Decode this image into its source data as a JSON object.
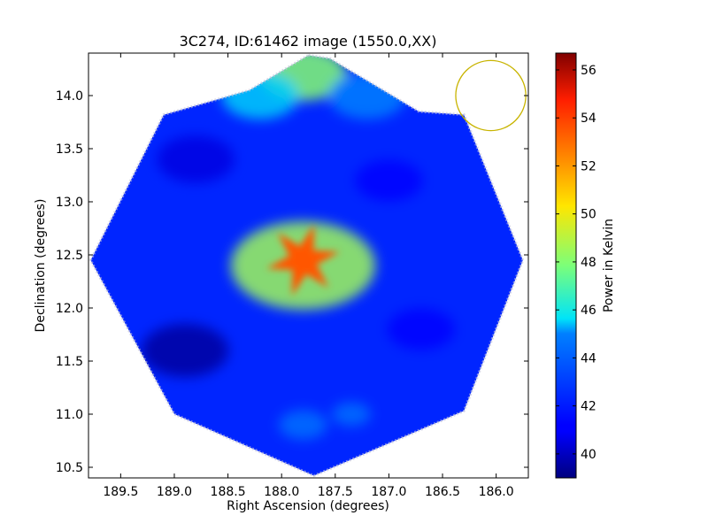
{
  "chart_data": {
    "type": "heatmap",
    "title": "3C274, ID:61462 image (1550.0,XX)",
    "xlabel": "Right Ascension (degrees)",
    "ylabel": "Declination (degrees)",
    "xlim": [
      189.8,
      185.7
    ],
    "ylim": [
      10.4,
      14.4
    ],
    "x_ticks": [
      189.5,
      189.0,
      188.5,
      188.0,
      187.5,
      187.0,
      186.5,
      186.0
    ],
    "x_tick_labels": [
      "189.5",
      "189.0",
      "188.5",
      "188.0",
      "187.5",
      "187.0",
      "186.5",
      "186.0"
    ],
    "y_ticks": [
      10.5,
      11.0,
      11.5,
      12.0,
      12.5,
      13.0,
      13.5,
      14.0
    ],
    "y_tick_labels": [
      "10.5",
      "11.0",
      "11.5",
      "12.0",
      "12.5",
      "13.0",
      "13.5",
      "14.0"
    ],
    "colorbar": {
      "label": "Power in Kelvin",
      "range": [
        39.0,
        56.7
      ],
      "ticks": [
        40,
        42,
        44,
        46,
        48,
        50,
        52,
        54,
        56
      ],
      "tick_labels": [
        "40",
        "42",
        "44",
        "46",
        "48",
        "50",
        "52",
        "54",
        "56"
      ],
      "colormap": "jet"
    },
    "footprint_vertices": [
      [
        187.75,
        14.38
      ],
      [
        187.55,
        14.35
      ],
      [
        186.72,
        13.85
      ],
      [
        186.3,
        13.82
      ],
      [
        185.75,
        12.45
      ],
      [
        186.3,
        11.03
      ],
      [
        187.7,
        10.42
      ],
      [
        189.0,
        11.0
      ],
      [
        189.78,
        12.45
      ],
      [
        189.1,
        13.82
      ],
      [
        188.3,
        14.05
      ]
    ],
    "features": [
      {
        "ra": 187.75,
        "dec": 12.42,
        "value": 56.5,
        "extent_deg": 0.12
      },
      {
        "ra": 187.8,
        "dec": 12.45,
        "value": 53.5,
        "extent_deg": 0.35
      },
      {
        "ra": 187.8,
        "dec": 12.4,
        "value": 48.5,
        "extent_deg": 0.75
      },
      {
        "ra": 187.8,
        "dec": 14.2,
        "value": 48.0,
        "extent_deg": 0.45
      },
      {
        "ra": 188.2,
        "dec": 14.0,
        "value": 45.5,
        "extent_deg": 0.4
      },
      {
        "ra": 187.2,
        "dec": 14.0,
        "value": 45.0,
        "extent_deg": 0.4
      },
      {
        "ra": 187.8,
        "dec": 10.9,
        "value": 44.5,
        "extent_deg": 0.25
      },
      {
        "ra": 187.35,
        "dec": 11.0,
        "value": 44.5,
        "extent_deg": 0.2
      },
      {
        "ra": 188.9,
        "dec": 11.6,
        "value": 39.5,
        "extent_deg": 0.45
      },
      {
        "ra": 186.7,
        "dec": 11.8,
        "value": 41.0,
        "extent_deg": 0.35
      },
      {
        "ra": 187.0,
        "dec": 13.2,
        "value": 41.0,
        "extent_deg": 0.35
      },
      {
        "ra": 188.8,
        "dec": 13.4,
        "value": 40.5,
        "extent_deg": 0.4
      }
    ],
    "background_value": 42.3,
    "beam_circle": {
      "ra": 186.05,
      "dec": 14.0,
      "radius_deg": 0.33,
      "color": "#c8b400"
    }
  }
}
